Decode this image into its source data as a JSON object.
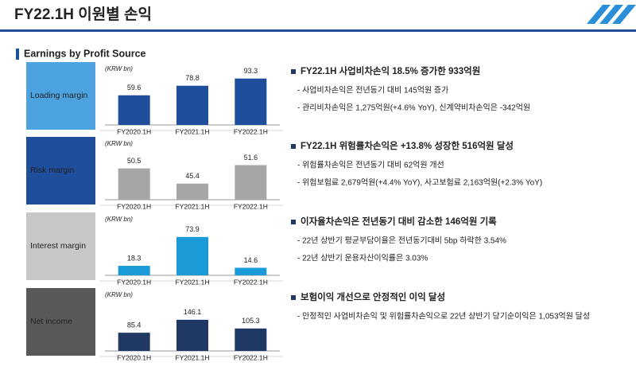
{
  "title": "FY22.1H 이원별 손익",
  "section": "Earnings by Profit Source",
  "panels": [
    {
      "label": "Loading margin",
      "headline": "FY22.1H 사업비차손익 18.5% 증가한 933억원",
      "points": [
        "- 사업비차손익은 전년동기 대비 145억원 증가",
        "- 관리비차손익은 1,275억원(+4.6% YoY), 신계약비차손익은 -342억원"
      ]
    },
    {
      "label": "Risk margin",
      "headline": "FY22.1H 위험률차손익은 +13.8% 성장한 516억원 달성",
      "points": [
        "- 위험률차손익은 전년동기 대비 62억원 개선",
        "- 위험보험료 2,679억원(+4.4% YoY), 사고보험료 2,163억원(+2.3% YoY)"
      ]
    },
    {
      "label": "Interest margin",
      "headline": "이자율차손익은 전년동기 대비 감소한 146억원 기록",
      "points": [
        "- 22년 상반기 평균부담이율은 전년동기대비 5bp 하락한 3.54%",
        "- 22년 상반기 운용자산이익률은 3.03%"
      ]
    },
    {
      "label": "Net income",
      "headline": "보험이익 개선으로 안정적인 이익 달성",
      "points": [
        "- 안정적인 사업비차손익 및 위험률차손익으로 22년 상반기 당기순이익은 1,053억원 달성"
      ]
    }
  ],
  "chart_data": [
    {
      "type": "bar",
      "subtitle": "(KRW bn)",
      "categories": [
        "FY2020.1H",
        "FY2021.1H",
        "FY2022.1H"
      ],
      "values": [
        59.6,
        78.8,
        93.3
      ],
      "color": "#1f4e9c",
      "ylim": [
        0,
        120
      ]
    },
    {
      "type": "bar",
      "subtitle": "(KRW bn)",
      "categories": [
        "FY2020.1H",
        "FY2021.1H",
        "FY2022.1H"
      ],
      "values": [
        50.5,
        45.4,
        51.6
      ],
      "color": "#a6a6a6",
      "ylim": [
        40,
        60
      ]
    },
    {
      "type": "bar",
      "subtitle": "(KRW bn)",
      "categories": [
        "FY2020.1H",
        "FY2021.1H",
        "FY2022.1H"
      ],
      "values": [
        18.3,
        73.9,
        14.6
      ],
      "color": "#1a9bd7",
      "ylim": [
        0,
        115
      ]
    },
    {
      "type": "bar",
      "subtitle": "(KRW bn)",
      "categories": [
        "FY2020.1H",
        "FY2021.1H",
        "FY2022.1H"
      ],
      "values": [
        85.4,
        146.1,
        105.3
      ],
      "color": "#1f3864",
      "ylim": [
        0,
        280
      ]
    }
  ]
}
